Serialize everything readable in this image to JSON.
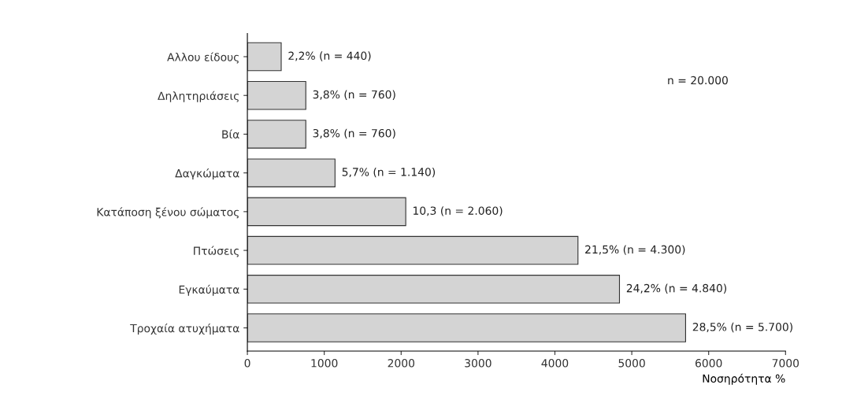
{
  "chart_data": {
    "type": "bar",
    "orientation": "horizontal",
    "categories": [
      "Αλλου είδους",
      "Δηλητηριάσεις",
      "Βία",
      "Δαγκώματα",
      "Κατάποση ξένου σώματος",
      "Πτώσεις",
      "Εγκαύματα",
      "Τροχαία ατυχήματα"
    ],
    "values": [
      440,
      760,
      760,
      1140,
      2060,
      4300,
      4840,
      5700
    ],
    "value_labels": [
      "2,2% (n = 440)",
      "3,8% (n = 760)",
      "3,8% (n = 760)",
      "5,7% (n = 1.140)",
      "10,3 (n = 2.060)",
      "21,5% (n = 4.300)",
      "24,2% (n = 4.840)",
      "28,5% (n = 5.700)"
    ],
    "color": "#d4d4d4",
    "xlabel": "Νοσηρότητα %",
    "xlim": [
      0,
      7000
    ],
    "xticks": [
      0,
      1000,
      2000,
      3000,
      4000,
      5000,
      6000,
      7000
    ],
    "annotations": [
      "n = 20.000"
    ],
    "grid": false
  }
}
